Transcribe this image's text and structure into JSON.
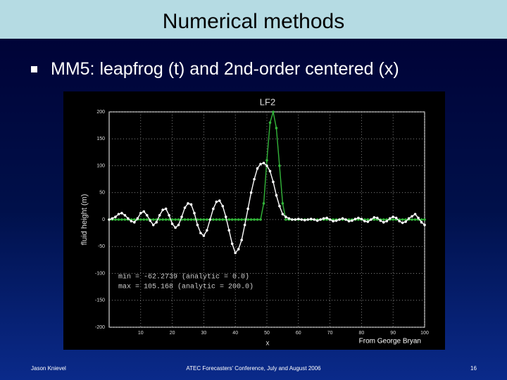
{
  "slide": {
    "title": "Numerical methods",
    "bullet": "MM5: leapfrog (t) and 2nd-order centered (x)",
    "credit": "From George Bryan",
    "footer_left": "Jason Knievel",
    "footer_center": "ATEC Forecasters' Conference, July and August 2006",
    "page_number": "16"
  },
  "chart_data": {
    "type": "line",
    "title": "LF2",
    "x_label": "x",
    "y_label": "fluid height (m)",
    "annotations": [
      "min = -62.2739 (analytic = 0.0)",
      "max = 105.168 (analytic = 200.0)"
    ],
    "xlim": [
      0,
      100
    ],
    "xticks": [
      10,
      20,
      30,
      40,
      50,
      60,
      70,
      80,
      90,
      100
    ],
    "ylim": [
      -200,
      200
    ],
    "yticks": [
      200,
      150,
      100,
      50,
      0,
      -50,
      -100,
      -150,
      -200
    ],
    "grid": true,
    "x": [
      0,
      1,
      2,
      3,
      4,
      5,
      6,
      7,
      8,
      9,
      10,
      11,
      12,
      13,
      14,
      15,
      16,
      17,
      18,
      19,
      20,
      21,
      22,
      23,
      24,
      25,
      26,
      27,
      28,
      29,
      30,
      31,
      32,
      33,
      34,
      35,
      36,
      37,
      38,
      39,
      40,
      41,
      42,
      43,
      44,
      45,
      46,
      47,
      48,
      49,
      50,
      51,
      52,
      53,
      54,
      55,
      56,
      57,
      58,
      59,
      60,
      61,
      62,
      63,
      64,
      65,
      66,
      67,
      68,
      69,
      70,
      71,
      72,
      73,
      74,
      75,
      76,
      77,
      78,
      79,
      80,
      81,
      82,
      83,
      84,
      85,
      86,
      87,
      88,
      89,
      90,
      91,
      92,
      93,
      94,
      95,
      96,
      97,
      98,
      99,
      100
    ],
    "series": [
      {
        "color": "#ffffff",
        "values": [
          0,
          2,
          5,
          10,
          12,
          8,
          2,
          -3,
          -5,
          2,
          12,
          15,
          8,
          -2,
          -10,
          -5,
          8,
          18,
          20,
          8,
          -8,
          -15,
          -10,
          5,
          22,
          30,
          28,
          12,
          -10,
          -25,
          -30,
          -20,
          0,
          20,
          33,
          35,
          25,
          5,
          -20,
          -45,
          -62,
          -55,
          -38,
          -10,
          20,
          50,
          75,
          95,
          103,
          105,
          100,
          90,
          70,
          45,
          25,
          10,
          5,
          2,
          0,
          0,
          1,
          0,
          -1,
          0,
          1,
          0,
          -2,
          0,
          2,
          3,
          0,
          -3,
          -2,
          0,
          2,
          0,
          -3,
          -2,
          1,
          3,
          1,
          -3,
          -4,
          0,
          4,
          3,
          -2,
          -5,
          -3,
          2,
          5,
          3,
          -3,
          -6,
          -4,
          2,
          6,
          10,
          3,
          -5,
          -10
        ]
      },
      {
        "color": "#33b53a",
        "values": [
          0,
          0,
          0,
          0,
          0,
          0,
          0,
          0,
          0,
          0,
          0,
          0,
          0,
          0,
          0,
          0,
          0,
          0,
          0,
          0,
          0,
          0,
          0,
          0,
          0,
          0,
          0,
          0,
          0,
          0,
          0,
          0,
          0,
          0,
          0,
          0,
          0,
          0,
          0,
          0,
          0,
          0,
          0,
          0,
          0,
          0,
          0,
          0,
          0,
          30,
          110,
          180,
          200,
          170,
          100,
          30,
          0,
          0,
          0,
          0,
          0,
          0,
          0,
          0,
          0,
          0,
          0,
          0,
          0,
          0,
          0,
          0,
          0,
          0,
          0,
          0,
          0,
          0,
          0,
          0,
          0,
          0,
          0,
          0,
          0,
          0,
          0,
          0,
          0,
          0,
          0,
          0,
          0,
          0,
          0,
          0,
          0,
          0,
          0,
          0,
          0
        ]
      }
    ]
  }
}
